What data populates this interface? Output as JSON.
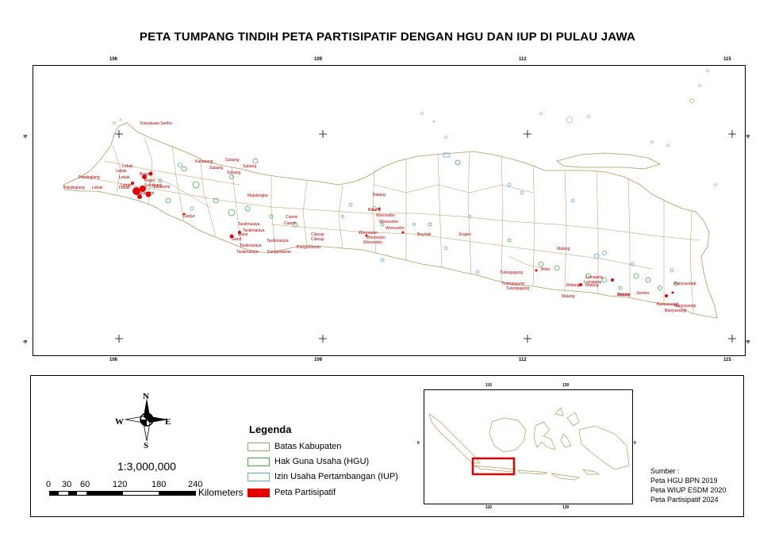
{
  "title": "PETA TUMPANG TINDIH PETA PARTISIPATIF DENGAN HGU DAN IUP DI PULAU JAWA",
  "map": {
    "top_ticks": [
      "106",
      "109",
      "112",
      "115"
    ],
    "bottom_ticks": [
      "106",
      "109",
      "112",
      "115"
    ],
    "left_ticks": [
      "-6",
      "-8"
    ],
    "right_ticks": [
      "-6",
      "-8"
    ],
    "labels": [
      "Kepulauan Seribu",
      "Lebak",
      "Lebak",
      "Pandeglang",
      "Lebak",
      "Lebak",
      "Bogor",
      "Bogor",
      "Pandeglang",
      "Lebak",
      "Lebak",
      "Sukabumi",
      "Sukabumi",
      "Sukabumi",
      "Karawang",
      "Subang",
      "Subang",
      "Subang",
      "Subang",
      "Majalengka",
      "Cianjur",
      "Tasikmalaya",
      "Tasikmalaya",
      "Garut",
      "Garut",
      "Tasikmalaya",
      "Tasikmalaya",
      "Tasikmalaya",
      "Pangandaran",
      "Ciamis",
      "Ciamis",
      "Cilacap",
      "Cilacap",
      "Pangandaran",
      "Batang",
      "Batang",
      "Wonosobo",
      "Wonosobo",
      "Wonosobo",
      "Wonosobo",
      "Wonosobo",
      "Wonosobo",
      "Boyolali",
      "Sragen",
      "Malang",
      "Blitar",
      "Tulungagung",
      "Tulungagung",
      "Tulungagung",
      "Malang",
      "Malang",
      "Malang",
      "Malang",
      "Lumajang",
      "Lumajang",
      "Jember",
      "Jember",
      "Banyuwangi",
      "Banyuwangi",
      "Banyuwangi",
      "Banyuwangi"
    ]
  },
  "compass": {
    "n": "N",
    "s": "S",
    "e": "E",
    "w": "W"
  },
  "scale": {
    "ratio": "1:3,000,000",
    "ticks": [
      "0",
      "30",
      "60",
      "120",
      "180",
      "240"
    ],
    "unit": "Kilometers"
  },
  "legend": {
    "title": "Legenda",
    "items": [
      {
        "label": "Batas Kabupaten",
        "color": "#b8955a",
        "style": "outline"
      },
      {
        "label": "Hak Guna Usaha (HGU)",
        "color": "#3fae49",
        "style": "outline"
      },
      {
        "label": "Izin Usaha Pertambangan (IUP)",
        "color": "#5aa7e8",
        "style": "outline"
      },
      {
        "label": "Peta Partisipatif",
        "color": "#e60000",
        "style": "fill"
      }
    ]
  },
  "inset": {
    "top_ticks": [
      "110",
      "130"
    ],
    "bottom_ticks": [
      "110",
      "130"
    ],
    "left_ticks": [
      "0"
    ],
    "right_ticks": [
      "0"
    ]
  },
  "source": {
    "heading": "Sumber :",
    "lines": [
      "Peta HGU BPN 2019",
      "Peta WIUP ESDM 2020",
      "Peta Partisipatif 2024"
    ]
  },
  "colors": {
    "boundary": "#b8955a",
    "hgu": "#3fae49",
    "iup": "#5aa7e8",
    "partisipatif": "#e60000",
    "label": "#b30000"
  }
}
